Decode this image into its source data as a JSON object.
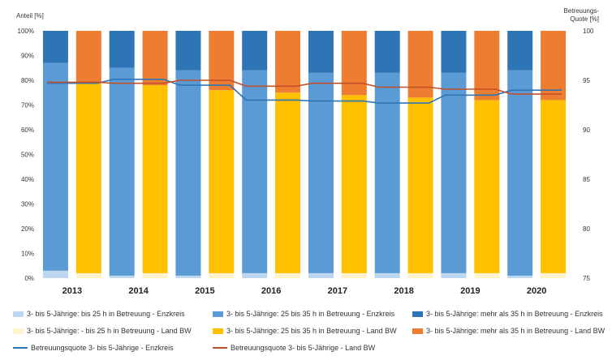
{
  "chart_data": {
    "type": "bar",
    "subtype": "stacked-100-percent-paired-with-lines",
    "y_left_label": "Anteil [%]",
    "y_right_label_line1": "Betreuungs-",
    "y_right_label_line2": "Quote [%]",
    "y_left_ticks": [
      "0%",
      "10%",
      "20%",
      "30%",
      "40%",
      "50%",
      "60%",
      "70%",
      "80%",
      "90%",
      "100%"
    ],
    "y_right_ticks": [
      "75",
      "80",
      "85",
      "90",
      "95",
      "100"
    ],
    "ylim_left": [
      0,
      100
    ],
    "ylim_right": [
      75,
      100
    ],
    "categories": [
      "2013",
      "2014",
      "2015",
      "2016",
      "2017",
      "2018",
      "2019",
      "2020"
    ],
    "bar_series": [
      {
        "name": "3- bis 5-Jährige: bis 25 h in Betreuung - Enzkreis",
        "group": "enzkreis",
        "color": "#bdd7ee",
        "values": [
          3,
          1,
          1,
          2,
          2,
          2,
          2,
          1
        ]
      },
      {
        "name": "3- bis 5-Jährige: 25 bis 35 h in Betreuung - Enzkreis",
        "group": "enzkreis",
        "color": "#5b9bd5",
        "values": [
          84,
          84,
          83,
          82,
          81,
          81,
          81,
          83
        ]
      },
      {
        "name": "3- bis 5-Jährige: mehr als 35 h in Betreuung - Enzkreis",
        "group": "enzkreis",
        "color": "#2e75b6",
        "values": [
          13,
          15,
          16,
          16,
          17,
          17,
          17,
          16
        ]
      },
      {
        "name": "3- bis 5-Jährige: - bis 25 h in Betreuung - Land BW",
        "group": "bw",
        "color": "#fff2cc",
        "values": [
          2,
          2,
          2,
          2,
          2,
          2,
          2,
          2
        ]
      },
      {
        "name": "3- bis 5-Jährige: 25 bis 35 h in Betreuung - Land BW",
        "group": "bw",
        "color": "#ffc000",
        "values": [
          77,
          76,
          74,
          73,
          72,
          71,
          70,
          70
        ]
      },
      {
        "name": "3- bis 5-Jährige: mehr als 35 h in Betreuung - Land BW",
        "group": "bw",
        "color": "#ed7d31",
        "values": [
          21,
          22,
          24,
          25,
          26,
          27,
          28,
          28
        ]
      }
    ],
    "line_series": [
      {
        "name": "Betreuungsquote 3- bis 5-Jährige - Enzkreis",
        "color": "#2e75b6",
        "axis": "right",
        "values": [
          94.7,
          95.1,
          94.5,
          93.0,
          92.9,
          92.7,
          93.5,
          94.0
        ]
      },
      {
        "name": "Betreuungsquote 3- bis 5-Jährige - Land BW",
        "color": "#c0502a",
        "axis": "right",
        "values": [
          94.8,
          94.7,
          95.0,
          94.4,
          94.7,
          94.3,
          94.1,
          93.6
        ]
      }
    ],
    "grid": false,
    "legend_position": "bottom"
  },
  "legend": {
    "items": [
      {
        "label": "3- bis 5-Jährige: bis 25 h in Betreuung - Enzkreis",
        "color": "#bdd7ee",
        "kind": "box"
      },
      {
        "label": "3- bis 5-Jährige: 25 bis 35 h in Betreuung - Enzkreis",
        "color": "#5b9bd5",
        "kind": "box"
      },
      {
        "label": "3- bis 5-Jährige: mehr als 35 h in Betreuung - Enzkreis",
        "color": "#2e75b6",
        "kind": "box"
      },
      {
        "label": "3- bis 5-Jährige: - bis 25 h in Betreuung - Land BW",
        "color": "#fff2cc",
        "kind": "box"
      },
      {
        "label": "3- bis 5-Jährige: 25 bis 35 h in Betreuung - Land BW",
        "color": "#ffc000",
        "kind": "box"
      },
      {
        "label": "3- bis 5-Jährige: mehr als 35 h in Betreuung - Land BW",
        "color": "#ed7d31",
        "kind": "box"
      },
      {
        "label": "Betreuungsquote 3- bis 5-Jährige - Enzkreis",
        "color": "#2e75b6",
        "kind": "line"
      },
      {
        "label": "Betreuungsquote 3- bis 5-Jährige - Land BW",
        "color": "#c0502a",
        "kind": "line"
      }
    ]
  }
}
